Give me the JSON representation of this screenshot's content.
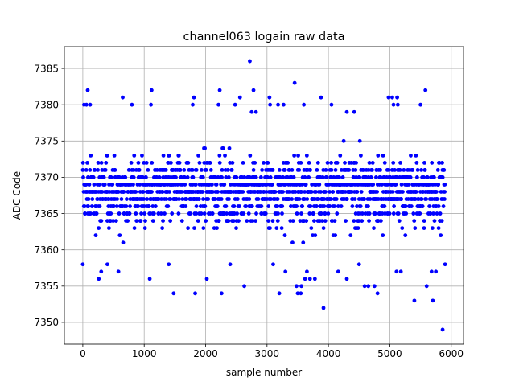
{
  "chart_data": {
    "type": "scatter",
    "title": "channel063 logain raw data",
    "xlabel": "sample number",
    "ylabel": "ADC Code",
    "xlim": [
      -300,
      6200
    ],
    "ylim": [
      7347,
      7388
    ],
    "xticks": [
      0,
      1000,
      2000,
      3000,
      4000,
      5000,
      6000
    ],
    "yticks": [
      7350,
      7355,
      7360,
      7365,
      7370,
      7375,
      7380,
      7385
    ],
    "grid": true,
    "legend": "none",
    "marker_color": "#0000ff",
    "n_samples": 5900,
    "value_range": [
      7349,
      7386
    ],
    "typical_band": [
      7360,
      7376
    ],
    "series": [
      {
        "points": [
          [
            2720,
            7386
          ],
          [
            3450,
            7383
          ],
          [
            80,
            7382
          ],
          [
            1120,
            7382
          ],
          [
            2230,
            7382
          ],
          [
            2780,
            7382
          ],
          [
            5580,
            7382
          ],
          [
            650,
            7381
          ],
          [
            1810,
            7381
          ],
          [
            2560,
            7381
          ],
          [
            3040,
            7381
          ],
          [
            3880,
            7381
          ],
          [
            4980,
            7381
          ],
          [
            5040,
            7381
          ],
          [
            5120,
            7381
          ],
          [
            20,
            7380
          ],
          [
            60,
            7380
          ],
          [
            120,
            7380
          ],
          [
            800,
            7380
          ],
          [
            1110,
            7380
          ],
          [
            1790,
            7380
          ],
          [
            2210,
            7380
          ],
          [
            2480,
            7380
          ],
          [
            3050,
            7380
          ],
          [
            3180,
            7380
          ],
          [
            3270,
            7380
          ],
          [
            3600,
            7380
          ],
          [
            4050,
            7380
          ],
          [
            5060,
            7380
          ],
          [
            5130,
            7380
          ],
          [
            5500,
            7380
          ],
          [
            2750,
            7379
          ],
          [
            2820,
            7379
          ],
          [
            4300,
            7379
          ],
          [
            4420,
            7379
          ],
          [
            3920,
            7352
          ],
          [
            5860,
            7349
          ],
          [
            5400,
            7353
          ],
          [
            5700,
            7353
          ],
          [
            1480,
            7354
          ],
          [
            1830,
            7354
          ],
          [
            2260,
            7354
          ],
          [
            3200,
            7354
          ],
          [
            3500,
            7354
          ],
          [
            3550,
            7354
          ],
          [
            4800,
            7354
          ],
          [
            2630,
            7355
          ],
          [
            3480,
            7355
          ],
          [
            3560,
            7355
          ],
          [
            4590,
            7355
          ],
          [
            4650,
            7355
          ],
          [
            4750,
            7355
          ],
          [
            5600,
            7355
          ],
          [
            260,
            7356
          ],
          [
            1090,
            7356
          ],
          [
            2020,
            7356
          ],
          [
            3620,
            7356
          ],
          [
            3700,
            7356
          ],
          [
            3780,
            7356
          ],
          [
            4300,
            7356
          ],
          [
            300,
            7357
          ],
          [
            580,
            7357
          ],
          [
            3300,
            7357
          ],
          [
            3650,
            7357
          ],
          [
            4160,
            7357
          ],
          [
            5110,
            7357
          ],
          [
            5180,
            7357
          ],
          [
            5680,
            7357
          ],
          [
            5750,
            7357
          ],
          [
            0,
            7358
          ],
          [
            400,
            7358
          ],
          [
            1400,
            7358
          ],
          [
            2400,
            7358
          ],
          [
            3100,
            7358
          ],
          [
            4500,
            7358
          ],
          [
            5900,
            7358
          ]
        ]
      }
    ]
  }
}
